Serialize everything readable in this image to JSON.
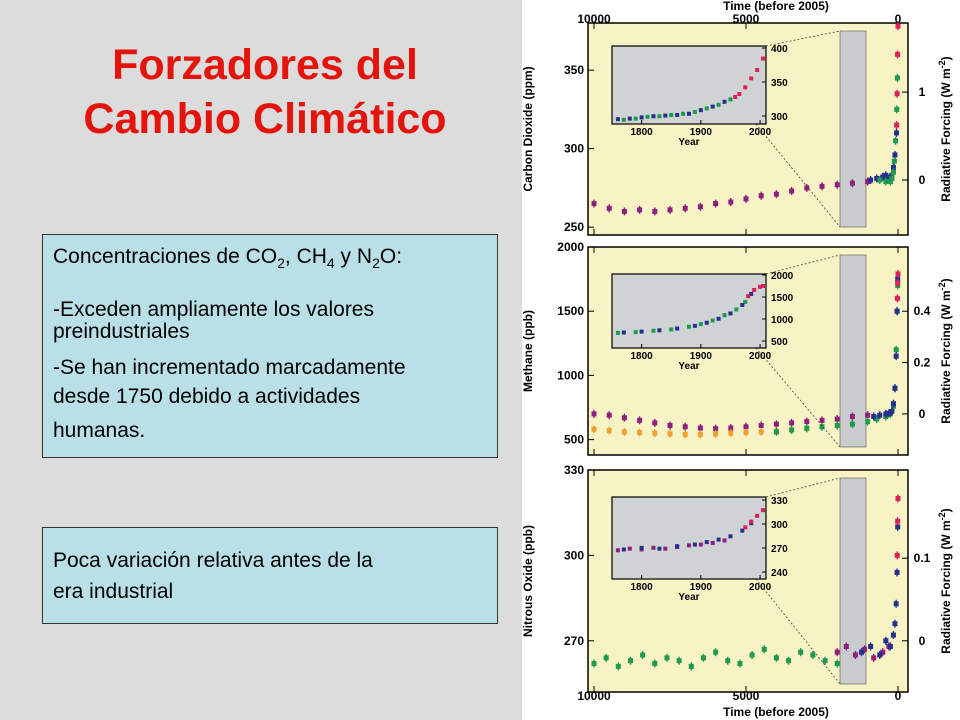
{
  "slide": {
    "title_line1": "Forzadores del",
    "title_line2": "Cambio Climático",
    "box1": {
      "line1_a": "Concentraciones de CO",
      "line1_sub1": "2",
      "line1_b": ", CH",
      "line1_sub2": "4",
      "line1_c": " y  N",
      "line1_sub3": "2",
      "line1_d": "O:",
      "line2": "-Exceden ampliamente los valores",
      "line3": "preindustriales",
      "line4": "-Se han incrementado marcadamente",
      "line5": "desde 1750 debido a actividades",
      "line6": "humanas."
    },
    "box2": {
      "line1": "Poca variación relativa antes de la",
      "line2": "era industrial"
    },
    "colors": {
      "title": "#e4140c",
      "box_fill": "#b9e0e6",
      "panel_bg": "#dcdcdc",
      "plot_bg": "#f8f3c4",
      "inset_bg": "#cfd3d3"
    }
  },
  "figure": {
    "top_axis_title": "Time (before 2005)",
    "bottom_axis_title": "Time (before 2005)",
    "time_ticks": [
      "10000",
      "5000",
      "0"
    ],
    "right_axis_title": "Radiative Forcing (W m",
    "right_axis_sup": "-2",
    "right_axis_close": ")"
  },
  "chart_data": [
    {
      "type": "scatter",
      "ylabel": "Carbon Dioxide (ppm)",
      "xlabel": "Time (before 2005)",
      "xlim": [
        10000,
        0
      ],
      "ylim": [
        245,
        380
      ],
      "y_ticks": [
        "250",
        "300",
        "350"
      ],
      "y_tick_values": [
        250,
        300,
        350
      ],
      "forcing_ticks": [
        "0",
        "1"
      ],
      "forcing_tick_values": [
        0,
        1
      ],
      "forcing_ref": {
        "zero_at": 280,
        "one_at": 336
      },
      "series": [
        {
          "color": "#8e1f7e",
          "x": [
            10000,
            9500,
            9000,
            8500,
            8000,
            7500,
            7000,
            6500,
            6000,
            5500,
            5000,
            4500,
            4000,
            3500,
            3000,
            2500,
            2000,
            1500,
            1000
          ],
          "y": [
            265,
            262,
            260,
            261,
            260,
            261,
            262,
            263,
            265,
            266,
            268,
            270,
            271,
            273,
            275,
            276,
            277,
            278,
            279
          ]
        },
        {
          "color": "#24308c",
          "x": [
            900,
            700,
            500,
            400,
            300,
            255,
            200,
            150,
            100,
            50
          ],
          "y": [
            280,
            281,
            282,
            283,
            281,
            280,
            283,
            288,
            296,
            310
          ]
        },
        {
          "color": "#1e9950",
          "x": [
            600,
            400,
            250,
            200,
            150,
            120,
            80,
            40,
            20
          ],
          "y": [
            280,
            279,
            279,
            281,
            285,
            292,
            305,
            325,
            345
          ]
        },
        {
          "color": "#e01e5a",
          "x": [
            45,
            30,
            15,
            0
          ],
          "y": [
            315,
            335,
            360,
            378
          ]
        }
      ],
      "inset": {
        "x_ticks": [
          "1800",
          "1900",
          "2000"
        ],
        "x_tick_values": [
          1800,
          1900,
          2000
        ],
        "y_ticks": [
          "300",
          "350",
          "400"
        ],
        "y_tick_values": [
          300,
          350,
          400
        ],
        "xlim": [
          1750,
          2010
        ],
        "ylim": [
          270,
          400
        ],
        "xlabel": "Year",
        "series": [
          {
            "color": "#24308c",
            "x": [
              1760,
              1780,
              1800,
              1820,
              1840,
              1860,
              1880,
              1900,
              1920,
              1940
            ],
            "y": [
              278,
              279,
              281,
              283,
              284,
              285,
              287,
              293,
              299,
              307
            ]
          },
          {
            "color": "#1e9950",
            "x": [
              1770,
              1790,
              1810,
              1830,
              1850,
              1870,
              1890,
              1910,
              1930,
              1950
            ],
            "y": [
              277,
              279,
              282,
              283,
              285,
              287,
              290,
              296,
              302,
              311
            ]
          },
          {
            "color": "#e01e5a",
            "x": [
              1958,
              1965,
              1975,
              1985,
              1995,
              2005
            ],
            "y": [
              315,
              320,
              331,
              346,
              360,
              379
            ]
          }
        ]
      }
    },
    {
      "type": "scatter",
      "ylabel": "Methane (ppb)",
      "xlabel": "Time (before 2005)",
      "xlim": [
        10000,
        0
      ],
      "ylim": [
        380,
        2000
      ],
      "y_ticks": [
        "500",
        "1000",
        "1500",
        "2000"
      ],
      "y_tick_values": [
        500,
        1000,
        1500,
        2000
      ],
      "forcing_ticks": [
        "0",
        "0.2",
        "0.4"
      ],
      "forcing_tick_values": [
        0,
        0.2,
        0.4
      ],
      "forcing_ref": {
        "zero_at": 700,
        "per_unit": 2000
      },
      "series": [
        {
          "color": "#8e1f7e",
          "x": [
            10000,
            9500,
            9000,
            8500,
            8000,
            7500,
            7000,
            6500,
            6000,
            5500,
            5000,
            4500,
            4000,
            3500,
            3000,
            2500,
            2000,
            1500,
            1000
          ],
          "y": [
            700,
            690,
            670,
            650,
            630,
            610,
            600,
            590,
            585,
            590,
            600,
            610,
            620,
            630,
            640,
            650,
            660,
            680,
            690
          ]
        },
        {
          "color": "#f0a030",
          "x": [
            10000,
            9500,
            9000,
            8500,
            8000,
            7500,
            7000,
            6500,
            6000,
            5500,
            5000,
            4500,
            4000,
            3500,
            3000
          ],
          "y": [
            580,
            570,
            560,
            555,
            550,
            545,
            540,
            540,
            545,
            550,
            555,
            560,
            565,
            575,
            585
          ]
        },
        {
          "color": "#1e9950",
          "x": [
            4000,
            3500,
            3000,
            2500,
            2000,
            1500,
            1000,
            700,
            400,
            250,
            150,
            100,
            60,
            30,
            10
          ],
          "y": [
            560,
            575,
            590,
            600,
            610,
            620,
            640,
            660,
            680,
            700,
            760,
            900,
            1200,
            1500,
            1700
          ]
        },
        {
          "color": "#24308c",
          "x": [
            800,
            600,
            400,
            300,
            200,
            150,
            100,
            60,
            30,
            10
          ],
          "y": [
            680,
            690,
            700,
            705,
            720,
            780,
            900,
            1150,
            1500,
            1750
          ]
        },
        {
          "color": "#e01e5a",
          "x": [
            20,
            10,
            0
          ],
          "y": [
            1600,
            1720,
            1790
          ]
        }
      ],
      "inset": {
        "x_ticks": [
          "1800",
          "1900",
          "2000"
        ],
        "x_tick_values": [
          1800,
          1900,
          2000
        ],
        "y_ticks": [
          "500",
          "1000",
          "1500",
          "2000"
        ],
        "y_tick_values": [
          500,
          1000,
          1500,
          2000
        ],
        "xlim": [
          1750,
          2010
        ],
        "ylim": [
          380,
          2050
        ],
        "xlabel": "Year",
        "series": [
          {
            "color": "#1e9950",
            "x": [
              1760,
              1790,
              1820,
              1850,
              1880,
              1900,
              1920,
              1940,
              1960,
              1975
            ],
            "y": [
              720,
              740,
              770,
              800,
              860,
              920,
              1000,
              1120,
              1250,
              1420
            ]
          },
          {
            "color": "#24308c",
            "x": [
              1770,
              1800,
              1830,
              1860,
              1890,
              1910,
              1930,
              1950,
              1970,
              1985
            ],
            "y": [
              730,
              750,
              780,
              820,
              880,
              950,
              1040,
              1160,
              1350,
              1600
            ]
          },
          {
            "color": "#e01e5a",
            "x": [
              1980,
              1990,
              2000,
              2005
            ],
            "y": [
              1550,
              1690,
              1760,
              1780
            ]
          }
        ]
      }
    },
    {
      "type": "scatter",
      "ylabel": "Nitrous Oxide (ppb)",
      "xlabel": "Time (before 2005)",
      "xlim": [
        10000,
        0
      ],
      "ylim": [
        252,
        330
      ],
      "y_ticks": [
        "270",
        "300",
        "330"
      ],
      "y_tick_values": [
        270,
        300,
        330
      ],
      "forcing_ticks": [
        "0",
        "0.1"
      ],
      "forcing_tick_values": [
        0,
        0.1
      ],
      "forcing_ref": {
        "zero_at": 270,
        "per_unit": 290
      },
      "series": [
        {
          "color": "#1e9950",
          "x": [
            10000,
            9600,
            9200,
            8800,
            8400,
            8000,
            7600,
            7200,
            6800,
            6400,
            6000,
            5600,
            5200,
            4800,
            4400,
            4000,
            3600,
            3200,
            2800,
            2400,
            2000
          ],
          "y": [
            262,
            264,
            261,
            263,
            265,
            262,
            264,
            263,
            261,
            264,
            266,
            263,
            262,
            265,
            267,
            264,
            263,
            266,
            265,
            263,
            262
          ]
        },
        {
          "color": "#8e1f7e",
          "x": [
            2000,
            1700,
            1400,
            1100,
            800,
            500,
            300
          ],
          "y": [
            266,
            268,
            265,
            267,
            264,
            266,
            268
          ]
        },
        {
          "color": "#24308c",
          "x": [
            1200,
            900,
            600,
            400,
            250,
            150,
            100,
            60,
            30,
            10
          ],
          "y": [
            266,
            268,
            265,
            270,
            268,
            272,
            276,
            283,
            294,
            310
          ]
        },
        {
          "color": "#e01e5a",
          "x": [
            25,
            12,
            0
          ],
          "y": [
            300,
            312,
            320
          ]
        }
      ],
      "inset": {
        "x_ticks": [
          "1800",
          "1900",
          "2000"
        ],
        "x_tick_values": [
          1800,
          1900,
          2000
        ],
        "y_ticks": [
          "240",
          "270",
          "300",
          "330"
        ],
        "y_tick_values": [
          240,
          270,
          300,
          330
        ],
        "xlim": [
          1750,
          2010
        ],
        "ylim": [
          235,
          335
        ],
        "xlabel": "Year",
        "series": [
          {
            "color": "#8e1f7e",
            "x": [
              1760,
              1780,
              1800,
              1820,
              1840,
              1860,
              1880,
              1900,
              1920,
              1940
            ],
            "y": [
              270,
              272,
              271,
              273,
              272,
              274,
              276,
              277,
              279,
              282
            ]
          },
          {
            "color": "#24308c",
            "x": [
              1770,
              1800,
              1830,
              1860,
              1890,
              1910,
              1930,
              1950,
              1970,
              1985
            ],
            "y": [
              271,
              273,
              272,
              275,
              277,
              280,
              283,
              287,
              294,
              303
            ]
          },
          {
            "color": "#e01e5a",
            "x": [
              1975,
              1985,
              1995,
              2005
            ],
            "y": [
              298,
              305,
              312,
              319
            ]
          }
        ]
      }
    }
  ]
}
